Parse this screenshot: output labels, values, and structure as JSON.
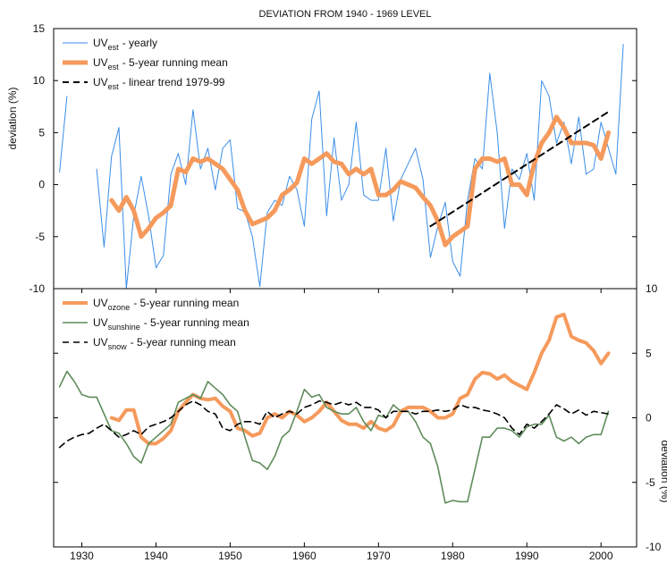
{
  "chart_data": [
    {
      "type": "line",
      "title": "DEVIATION FROM 1940 - 1969 LEVEL",
      "ylabel": "deviation (%)",
      "yaxis_side": "left",
      "xlim": [
        1926.2,
        2004.8
      ],
      "ylim": [
        -10,
        15
      ],
      "yticks": [
        15,
        10,
        5,
        0,
        -5,
        -10
      ],
      "x": [
        1927,
        1928,
        1929,
        1930,
        1931,
        1932,
        1933,
        1934,
        1935,
        1936,
        1937,
        1938,
        1939,
        1940,
        1941,
        1942,
        1943,
        1944,
        1945,
        1946,
        1947,
        1948,
        1949,
        1950,
        1951,
        1952,
        1953,
        1954,
        1955,
        1956,
        1957,
        1958,
        1959,
        1960,
        1961,
        1962,
        1963,
        1964,
        1965,
        1966,
        1967,
        1968,
        1969,
        1970,
        1971,
        1972,
        1973,
        1974,
        1975,
        1976,
        1977,
        1978,
        1979,
        1980,
        1981,
        1982,
        1983,
        1984,
        1985,
        1986,
        1987,
        1988,
        1989,
        1990,
        1991,
        1992,
        1993,
        1994,
        1995,
        1996,
        1997,
        1998,
        1999,
        2000,
        2001,
        2002,
        2003
      ],
      "series": [
        {
          "name": "UV",
          "subscript": "est",
          "suffix": "- yearly",
          "color": "#3b8ee8",
          "linewidth": 1,
          "dashed": false,
          "values": [
            1.2,
            8.5,
            null,
            null,
            null,
            1.5,
            -6,
            2.7,
            5.5,
            -10,
            -3,
            0.8,
            -3,
            -8,
            -6.8,
            1,
            3,
            0,
            7.2,
            1.5,
            3.5,
            -0.5,
            3.5,
            4.3,
            -2.3,
            -2.6,
            -5,
            -9.8,
            -2.7,
            -1.5,
            -2,
            0.8,
            -0.5,
            -4,
            6.3,
            9,
            -3,
            4.5,
            -1.5,
            0,
            6,
            -1,
            -1.5,
            -1.5,
            3.5,
            -3.5,
            0.5,
            2,
            3.5,
            0.5,
            -7,
            -4,
            -1.7,
            -7.4,
            -8.8,
            -1.5,
            2.5,
            1.5,
            10.7,
            5,
            -4.2,
            1.5,
            0.5,
            3,
            -1.5,
            10,
            8.5,
            4,
            6,
            2,
            6.5,
            1,
            1.5,
            6,
            3.5,
            1,
            13.5
          ]
        },
        {
          "name": "UV",
          "subscript": "est",
          "suffix": "- 5-year running mean",
          "color": "#f59a5c",
          "linewidth": 5,
          "dashed": false,
          "values": [
            null,
            null,
            null,
            null,
            null,
            null,
            null,
            -1.5,
            -2.5,
            -1.2,
            -2.5,
            -5,
            -4.2,
            -3.2,
            -2.7,
            -2,
            1.5,
            1.2,
            2.5,
            2.2,
            2.5,
            2,
            1.5,
            0.5,
            -0.5,
            -2.5,
            -3.8,
            -3.5,
            -3.2,
            -2.5,
            -1,
            -0.5,
            0.2,
            2.5,
            2,
            2.5,
            3,
            2.2,
            2,
            1,
            1.5,
            1,
            1.5,
            -1,
            -1,
            -0.5,
            0.3,
            0,
            -0.3,
            -1.2,
            -2,
            -3.5,
            -5.8,
            -5,
            -4.5,
            -4,
            1.5,
            2.5,
            2.5,
            2.2,
            2.5,
            0,
            0,
            -1,
            2,
            4,
            5,
            6.5,
            5.5,
            4,
            4,
            4,
            3.8,
            2.5,
            5,
            null,
            null
          ]
        },
        {
          "name": "UV",
          "subscript": "est",
          "suffix": "- linear trend 1979-99",
          "color": "#000000",
          "linewidth": 2,
          "dashed": true,
          "x": [
            1977,
            2001
          ],
          "values": [
            -4,
            7
          ]
        }
      ]
    },
    {
      "type": "line",
      "ylabel": "deviation (%)",
      "yaxis_side": "right",
      "xlim": [
        1926.2,
        2004.8
      ],
      "ylim": [
        -10,
        10
      ],
      "yticks": [
        10,
        5,
        0,
        -5,
        -10
      ],
      "xticks": [
        1930,
        1940,
        1950,
        1960,
        1970,
        1980,
        1990,
        2000
      ],
      "x": [
        1927,
        1928,
        1929,
        1930,
        1931,
        1932,
        1933,
        1934,
        1935,
        1936,
        1937,
        1938,
        1939,
        1940,
        1941,
        1942,
        1943,
        1944,
        1945,
        1946,
        1947,
        1948,
        1949,
        1950,
        1951,
        1952,
        1953,
        1954,
        1955,
        1956,
        1957,
        1958,
        1959,
        1960,
        1961,
        1962,
        1963,
        1964,
        1965,
        1966,
        1967,
        1968,
        1969,
        1970,
        1971,
        1972,
        1973,
        1974,
        1975,
        1976,
        1977,
        1978,
        1979,
        1980,
        1981,
        1982,
        1983,
        1984,
        1985,
        1986,
        1987,
        1988,
        1989,
        1990,
        1991,
        1992,
        1993,
        1994,
        1995,
        1996,
        1997,
        1998,
        1999,
        2000,
        2001
      ],
      "series": [
        {
          "name": "UV",
          "subscript": "ozone",
          "suffix": "- 5-year running mean",
          "color": "#f59a5c",
          "linewidth": 4,
          "dashed": false,
          "values": [
            null,
            null,
            null,
            null,
            null,
            null,
            null,
            0,
            -0.2,
            0.6,
            0.6,
            -1.5,
            -2,
            -2,
            -1.6,
            -1,
            0.5,
            1.2,
            1.8,
            1.5,
            1.4,
            1.5,
            0.9,
            0.5,
            -0.8,
            -1,
            -1.4,
            -1.2,
            0,
            0.3,
            0,
            0.5,
            0.2,
            -0.3,
            0,
            0.5,
            1.2,
            0.5,
            -0.2,
            -0.5,
            -0.5,
            -0.8,
            -0.3,
            -0.8,
            -1,
            -0.6,
            0.5,
            0.8,
            0.8,
            0.8,
            0.5,
            0,
            0,
            0.3,
            1.5,
            1.8,
            3,
            3.5,
            3.4,
            3,
            3.3,
            2.8,
            2.5,
            2.2,
            3.5,
            5,
            6,
            7.8,
            8,
            6.3,
            6,
            5.8,
            5.2,
            4.2,
            5
          ]
        },
        {
          "name": "UV",
          "subscript": "sunshine",
          "suffix": "- 5-year running mean",
          "color": "#5e8c5a",
          "linewidth": 1.6,
          "dashed": false,
          "values": [
            2.4,
            3.6,
            2.8,
            1.8,
            1.6,
            1.6,
            0.3,
            -1,
            -1.2,
            -2,
            -3,
            -3.5,
            -2,
            -1.5,
            -1,
            -0.5,
            1.2,
            1.5,
            1.8,
            1.5,
            2.8,
            2.3,
            1.8,
            1,
            0.5,
            -1.5,
            -3.3,
            -3.5,
            -4,
            -3,
            -1.5,
            -1,
            0.5,
            2.2,
            1.6,
            1.8,
            0.8,
            0.5,
            0.3,
            0.3,
            0.8,
            -0.3,
            -1,
            0.2,
            0,
            1,
            0.5,
            0.5,
            -0.3,
            -1.5,
            -2,
            -3.8,
            -6.6,
            -6.4,
            -6.5,
            -6.5,
            -4,
            -1.5,
            -1.5,
            -0.8,
            -0.8,
            -1,
            -1.5,
            -0.7,
            -0.5,
            -0.5,
            0.2,
            -1.5,
            -1.8,
            -1.5,
            -2,
            -1.5,
            -1.3,
            -1.3,
            0.5
          ]
        },
        {
          "name": "UV",
          "subscript": "snow",
          "suffix": "- 5-year running mean",
          "color": "#000000",
          "linewidth": 1.6,
          "dashed": true,
          "values": [
            -2.3,
            -1.8,
            -1.5,
            -1.3,
            -1.2,
            -0.8,
            -0.5,
            -1,
            -1.5,
            -1.3,
            -1,
            -1.3,
            -0.7,
            -0.5,
            -0.3,
            0,
            0.5,
            1,
            1.3,
            1,
            0.5,
            0.3,
            -0.8,
            -1,
            -0.5,
            -0.3,
            -0.3,
            -0.5,
            0.5,
            0,
            0.3,
            0.5,
            0.3,
            0.8,
            1,
            1.3,
            1.2,
            1,
            1.2,
            1,
            1.2,
            0.8,
            0.8,
            0.6,
            0,
            0.5,
            0.5,
            0.5,
            0.3,
            0.5,
            0.5,
            0.6,
            0.5,
            0.6,
            1,
            0.8,
            0.8,
            0.6,
            0.5,
            0.3,
            0,
            -0.8,
            -1.3,
            -0.5,
            -0.8,
            -0.3,
            0.3,
            1,
            0.7,
            0.3,
            0.6,
            0.2,
            0.5,
            0.4,
            0.3
          ]
        }
      ]
    }
  ]
}
